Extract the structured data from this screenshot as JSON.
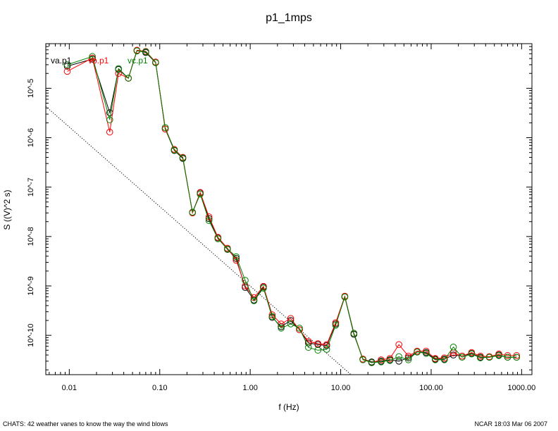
{
  "chart_data": {
    "type": "scatter",
    "title": "p1_1mps",
    "xlabel": "f (Hz)",
    "ylabel": "S ((V)^2 s)",
    "xscale": "log",
    "yscale": "log",
    "xlim": [
      0.0055,
      1300
    ],
    "ylim": [
      1.6e-11,
      8e-05
    ],
    "x_ticks": [
      {
        "value": 0.01,
        "label": "0.01"
      },
      {
        "value": 0.1,
        "label": "0.10"
      },
      {
        "value": 1,
        "label": "1.00"
      },
      {
        "value": 10,
        "label": "10.00"
      },
      {
        "value": 100,
        "label": "100.00"
      },
      {
        "value": 1000,
        "label": "1000.00"
      }
    ],
    "y_ticks": [
      {
        "value": 1e-10,
        "label": "10^-10"
      },
      {
        "value": 1e-09,
        "label": "10^-9"
      },
      {
        "value": 1e-08,
        "label": "10^-8"
      },
      {
        "value": 1e-07,
        "label": "10^-7"
      },
      {
        "value": 1e-06,
        "label": "10^-6"
      },
      {
        "value": 1e-05,
        "label": "10^-5"
      }
    ],
    "grid": false,
    "legend_position": "top-left",
    "x": [
      0.0095,
      0.018,
      0.028,
      0.035,
      0.045,
      0.056,
      0.07,
      0.09,
      0.115,
      0.145,
      0.18,
      0.23,
      0.28,
      0.35,
      0.44,
      0.56,
      0.7,
      0.88,
      1.1,
      1.4,
      1.75,
      2.2,
      2.8,
      3.5,
      4.4,
      5.6,
      7.0,
      8.8,
      11.1,
      14,
      17.6,
      22,
      28,
      35,
      44,
      56,
      70,
      88,
      111,
      140,
      176,
      220,
      280,
      350,
      440,
      560,
      700,
      880
    ],
    "series": [
      {
        "name": "va.p1",
        "color": "#000000",
        "values": [
          2.8e-05,
          3.9e-05,
          3.2e-06,
          2.4e-05,
          1.6e-05,
          5.8e-05,
          5.3e-05,
          3.3e-05,
          1.5e-06,
          5.5e-07,
          3.8e-07,
          3.1e-08,
          7.6e-08,
          2.3e-08,
          9.4e-09,
          5.5e-09,
          3.6e-09,
          9.3e-10,
          5.2e-10,
          9.5e-10,
          2.3e-10,
          1.5e-10,
          2e-10,
          1.3e-10,
          7e-11,
          6.5e-11,
          6.2e-11,
          1.7e-10,
          6e-10,
          1.05e-10,
          3.3e-11,
          2.9e-11,
          3e-11,
          3.2e-11,
          3e-11,
          3.5e-11,
          4.6e-11,
          4.5e-11,
          3.3e-11,
          3.3e-11,
          4e-11,
          3.8e-11,
          4.3e-11,
          3.6e-11,
          3.6e-11,
          4e-11,
          3.6e-11,
          3.6e-11
        ]
      },
      {
        "name": "vb.p1",
        "color": "#ff0000",
        "values": [
          2.2e-05,
          4.1e-05,
          1.3e-06,
          2e-05,
          1.6e-05,
          5.9e-05,
          5.6e-05,
          3.4e-05,
          1.5e-06,
          5.8e-07,
          4e-07,
          3e-08,
          7.8e-08,
          2.5e-08,
          9.6e-09,
          5.8e-09,
          3.3e-09,
          1e-09,
          5.8e-10,
          9.8e-10,
          2.6e-10,
          1.7e-10,
          2.2e-10,
          1.3e-10,
          7.5e-11,
          6.8e-11,
          6.5e-11,
          1.8e-10,
          6.2e-10,
          1.1e-10,
          3.3e-11,
          2.8e-11,
          3.2e-11,
          3.4e-11,
          6.5e-11,
          3.8e-11,
          4.8e-11,
          4.8e-11,
          3.4e-11,
          3.5e-11,
          4.4e-11,
          3.8e-11,
          4.5e-11,
          3.8e-11,
          3.7e-11,
          4.2e-11,
          3.9e-11,
          3.9e-11
        ]
      },
      {
        "name": "vc.p1",
        "color": "#008000",
        "values": [
          3e-05,
          4.4e-05,
          2.3e-06,
          2.5e-05,
          1.6e-05,
          5.7e-05,
          5.5e-05,
          3.3e-05,
          1.6e-06,
          5.6e-07,
          3.9e-07,
          3.1e-08,
          7.2e-08,
          2.1e-08,
          9e-09,
          5.6e-09,
          3.9e-09,
          1.3e-09,
          5e-10,
          9e-10,
          2.4e-10,
          1.4e-10,
          1.7e-10,
          1.4e-10,
          5.7e-11,
          5e-11,
          5.2e-11,
          1.6e-10,
          6e-10,
          1.1e-10,
          3.2e-11,
          2.8e-11,
          2.9e-11,
          3.1e-11,
          3.7e-11,
          3.2e-11,
          4.6e-11,
          4.3e-11,
          3.2e-11,
          3.2e-11,
          5.8e-11,
          3.6e-11,
          4.2e-11,
          3.5e-11,
          3.6e-11,
          3.9e-11,
          3.6e-11,
          3.6e-11
        ]
      }
    ],
    "reference_line": {
      "style": "dotted",
      "x": [
        0.0055,
        13
      ],
      "y": [
        4.3e-06,
        1.6e-11
      ]
    }
  },
  "footer": {
    "left": "CHATS: 42 weather vanes to know the way the wind blows",
    "right": "NCAR 18:03 Mar 06 2007"
  }
}
